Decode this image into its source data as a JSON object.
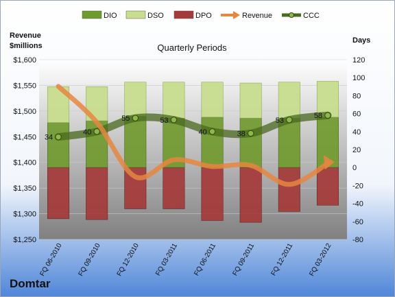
{
  "company": "Domtar",
  "chart_data": {
    "type": "bar",
    "title": "Quarterly Periods",
    "left_axis_label_line1": "Revenue",
    "left_axis_label_line2": "$millions",
    "right_axis_label": "Days",
    "left_axis": {
      "min": 1250,
      "max": 1600,
      "step": 50,
      "tick_labels": [
        "$1,250",
        "$1,300",
        "$1,350",
        "$1,400",
        "$1,450",
        "$1,500",
        "$1,550",
        "$1,600"
      ]
    },
    "right_axis": {
      "min": -80,
      "max": 120,
      "step": 20,
      "tick_labels": [
        "-80",
        "-60",
        "-40",
        "-20",
        "0",
        "20",
        "40",
        "60",
        "80",
        "100",
        "120"
      ]
    },
    "categories": [
      "FQ 06-2010",
      "FQ 09-2010",
      "FQ 12-2010",
      "FQ 03-2011",
      "FQ 06-2011",
      "FQ 09-2011",
      "FQ 12-2011",
      "FQ 03-2012"
    ],
    "legend": [
      "DIO",
      "DSO",
      "DPO",
      "Revenue",
      "CCC"
    ],
    "legend_position": "top",
    "series": [
      {
        "name": "DIO",
        "axis": "right",
        "stacked": true,
        "color": "#6f9a2c",
        "values": [
          50,
          52,
          57,
          55,
          56,
          55,
          55,
          56
        ]
      },
      {
        "name": "DSO",
        "axis": "right",
        "stacked": true,
        "color": "#c8de8e",
        "values": [
          40,
          38,
          38,
          40,
          39,
          39,
          40,
          40
        ]
      },
      {
        "name": "DPO",
        "axis": "right",
        "stacked": true,
        "negative": true,
        "color": "#a53a3a",
        "values": [
          -57,
          -58,
          -46,
          -46,
          -59,
          -61,
          -49,
          -42
        ]
      },
      {
        "name": "Revenue",
        "axis": "left",
        "type": "line",
        "color": "#e6863f",
        "values": [
          1548,
          1478,
          1372,
          1405,
          1392,
          1394,
          1357,
          1398
        ]
      },
      {
        "name": "CCC",
        "axis": "right",
        "type": "line",
        "color": "#4a6a1e",
        "values": [
          34,
          40,
          55,
          53,
          40,
          38,
          53,
          58
        ],
        "labels": [
          "34",
          "40",
          "55",
          "53",
          "40",
          "38",
          "53",
          "58"
        ]
      }
    ],
    "colors": {
      "plot_top": "#ffffff",
      "plot_bottom": "#7f7f7f",
      "bg_top": "#ffffff",
      "bg_bottom": "#4f86d8"
    }
  }
}
